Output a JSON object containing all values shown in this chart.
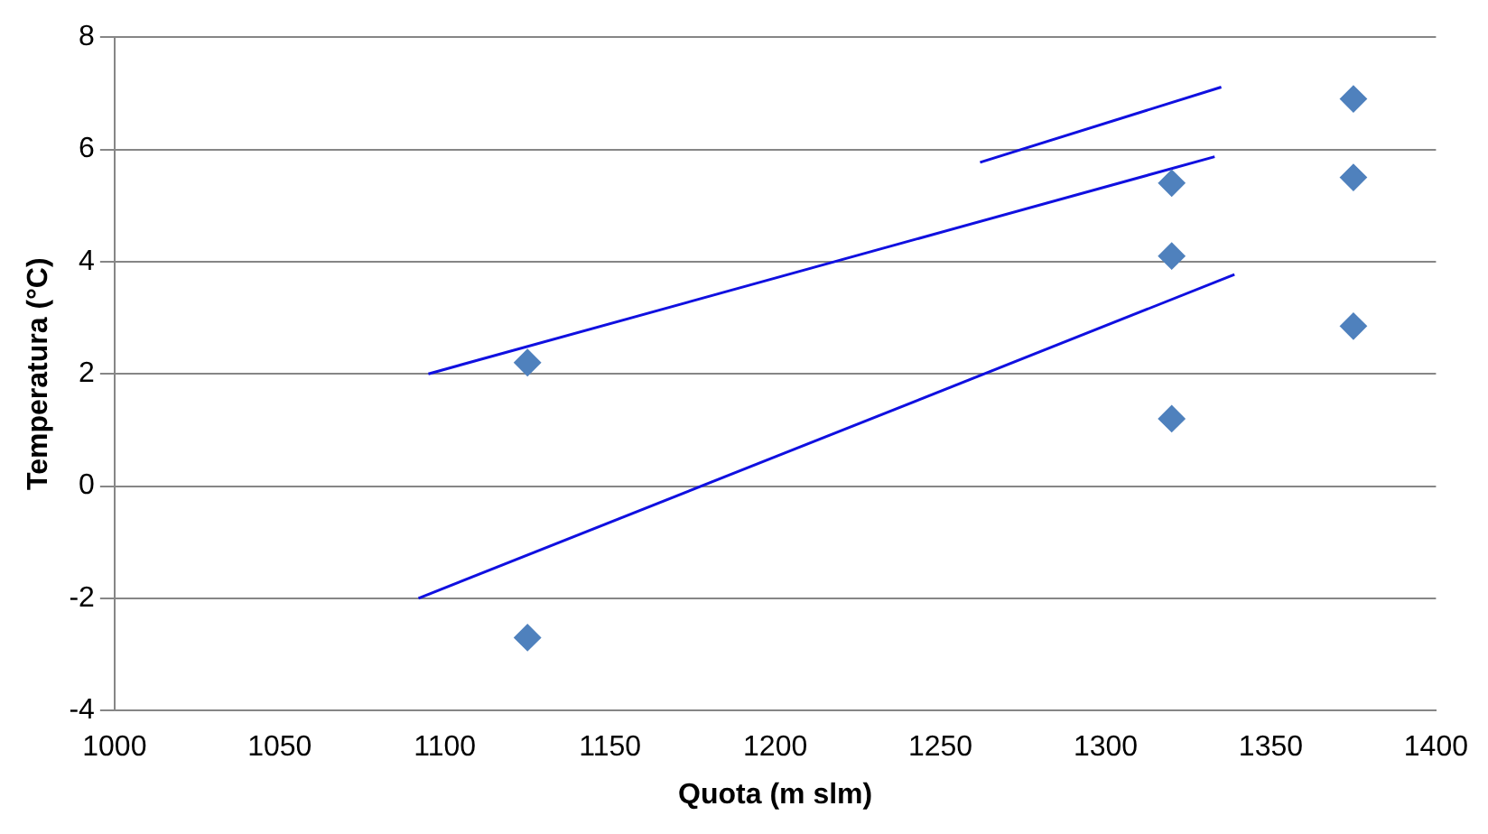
{
  "chart_data": {
    "type": "scatter",
    "xlabel": "Quota (m slm)",
    "ylabel": "Temperatura (°C)",
    "xlim": [
      1000,
      1400
    ],
    "xticks": [
      1000,
      1050,
      1100,
      1150,
      1200,
      1250,
      1300,
      1350,
      1400
    ],
    "ylim": [
      -4,
      8
    ],
    "yticks": [
      -4,
      -2,
      0,
      2,
      4,
      6,
      8
    ],
    "grid": "y",
    "legend": false,
    "series": [
      {
        "type": "scatter",
        "color": "#4f81bd",
        "marker": "diamond",
        "x": [
          1125,
          1125,
          1320,
          1320,
          1320,
          1375,
          1375,
          1375
        ],
        "values": [
          2.2,
          -2.7,
          5.4,
          4.1,
          1.2,
          6.9,
          5.5,
          2.85
        ]
      },
      {
        "type": "line",
        "color": "#1010e0",
        "marker": "none",
        "x": [
          1095,
          1333
        ],
        "values": [
          2.0,
          5.87
        ]
      },
      {
        "type": "line",
        "color": "#1010e0",
        "marker": "none",
        "x": [
          1092,
          1339
        ],
        "values": [
          -2.0,
          3.77
        ]
      },
      {
        "type": "line",
        "color": "#1010e0",
        "marker": "none",
        "x": [
          1262,
          1335
        ],
        "values": [
          5.77,
          7.11
        ]
      }
    ]
  }
}
